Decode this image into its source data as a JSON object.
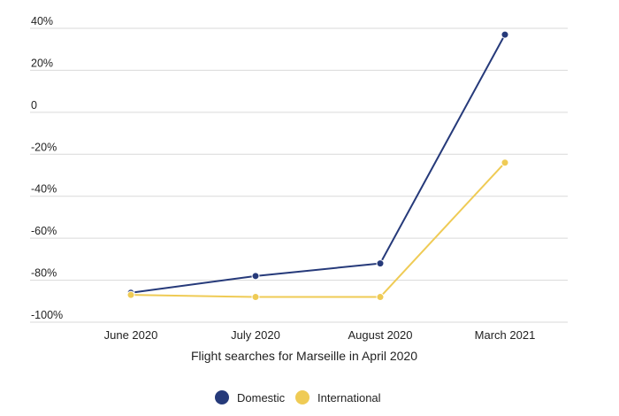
{
  "colors": {
    "domestic": "#263a7a",
    "international": "#efcb55",
    "grid": "#d9d9d9"
  },
  "chart_data": {
    "type": "line",
    "title": "",
    "xlabel": "Flight searches for Marseille in April 2020",
    "ylabel": "",
    "categories": [
      "June 2020",
      "July 2020",
      "August 2020",
      "March 2021"
    ],
    "ylim": [
      -100,
      40
    ],
    "yticks": [
      40,
      20,
      0,
      -20,
      -40,
      -60,
      -80,
      -100
    ],
    "ytick_labels": [
      "40%",
      "20%",
      "0",
      "-20%",
      "-40%",
      "-60%",
      "-80%",
      "-100%"
    ],
    "grid": true,
    "legend_position": "bottom",
    "series": [
      {
        "name": "Domestic",
        "color": "#263a7a",
        "values": [
          -86,
          -78,
          -72,
          37
        ]
      },
      {
        "name": "International",
        "color": "#efcb55",
        "values": [
          -87,
          -88,
          -88,
          -24
        ]
      }
    ]
  }
}
